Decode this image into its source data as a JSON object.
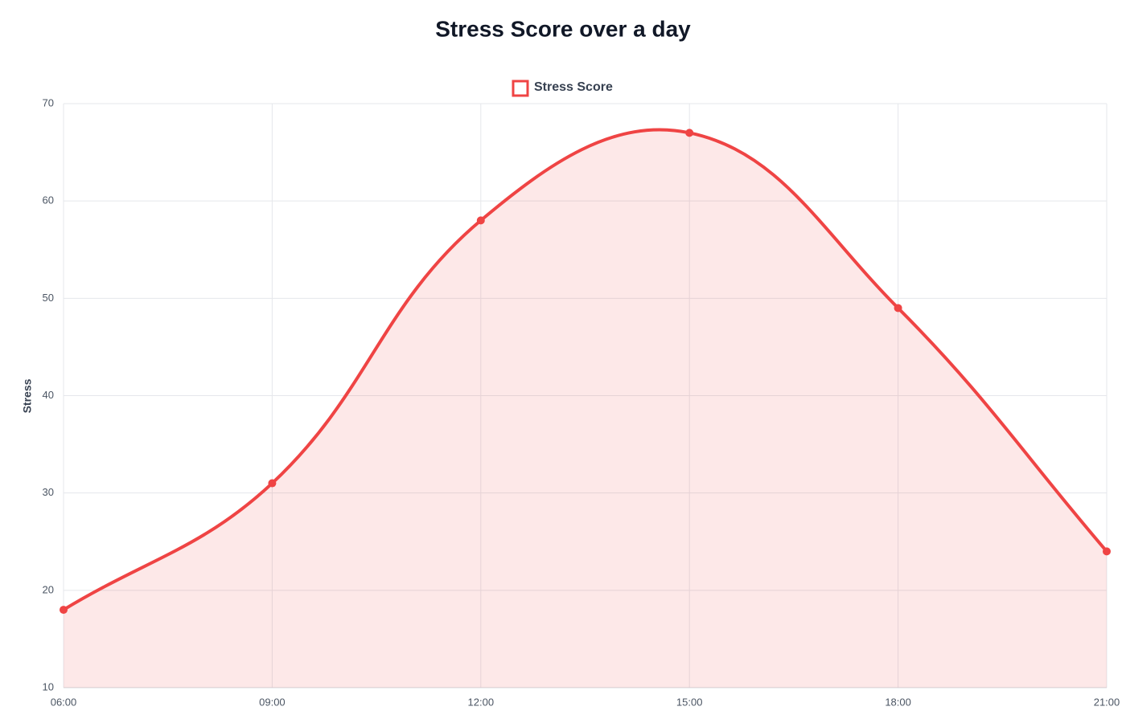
{
  "chart_data": {
    "type": "line",
    "title": "Stress Score over a day",
    "categories": [
      "06:00",
      "09:00",
      "12:00",
      "15:00",
      "18:00",
      "21:00"
    ],
    "series": [
      {
        "name": "Stress Score",
        "color": "#ef4444",
        "values": [
          18,
          31,
          58,
          67,
          49,
          24
        ]
      }
    ],
    "ylabel": "Stress",
    "ylim": [
      10,
      70
    ],
    "yticks": [
      10,
      20,
      30,
      40,
      50,
      60,
      70
    ],
    "grid": true,
    "fill": true,
    "legend": "top"
  }
}
